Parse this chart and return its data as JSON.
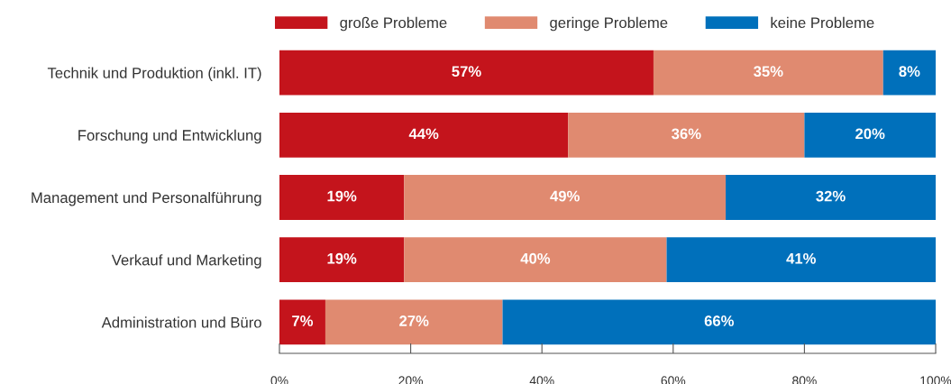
{
  "chart_data": {
    "type": "bar",
    "orientation": "horizontal",
    "stacked": true,
    "categories": [
      "Technik und Produktion (inkl. IT)",
      "Forschung und Entwicklung",
      "Management und Personalführung",
      "Verkauf und Marketing",
      "Administration und Büro"
    ],
    "series": [
      {
        "name": "große Probleme",
        "color": "#c4141c",
        "values": [
          57,
          44,
          19,
          19,
          7
        ],
        "value_labels": [
          "57%",
          "44%",
          "19%",
          "19%",
          "7%"
        ]
      },
      {
        "name": "geringe Probleme",
        "color": "#e08a70",
        "values": [
          35,
          36,
          49,
          40,
          27
        ],
        "value_labels": [
          "35%",
          "36%",
          "49%",
          "40%",
          "27%"
        ]
      },
      {
        "name": "keine Probleme",
        "color": "#0070bb",
        "values": [
          8,
          20,
          32,
          41,
          66
        ],
        "value_labels": [
          "8%",
          "20%",
          "32%",
          "41%",
          "66%"
        ]
      }
    ],
    "xlim": [
      0,
      100
    ],
    "xticks": [
      {
        "value": 0,
        "label": "0%"
      },
      {
        "value": 20,
        "label": "20%"
      },
      {
        "value": 40,
        "label": "40%"
      },
      {
        "value": 60,
        "label": "60%"
      },
      {
        "value": 80,
        "label": "80%"
      },
      {
        "value": 100,
        "label": "100%"
      }
    ],
    "grid": false,
    "legend": "top"
  }
}
